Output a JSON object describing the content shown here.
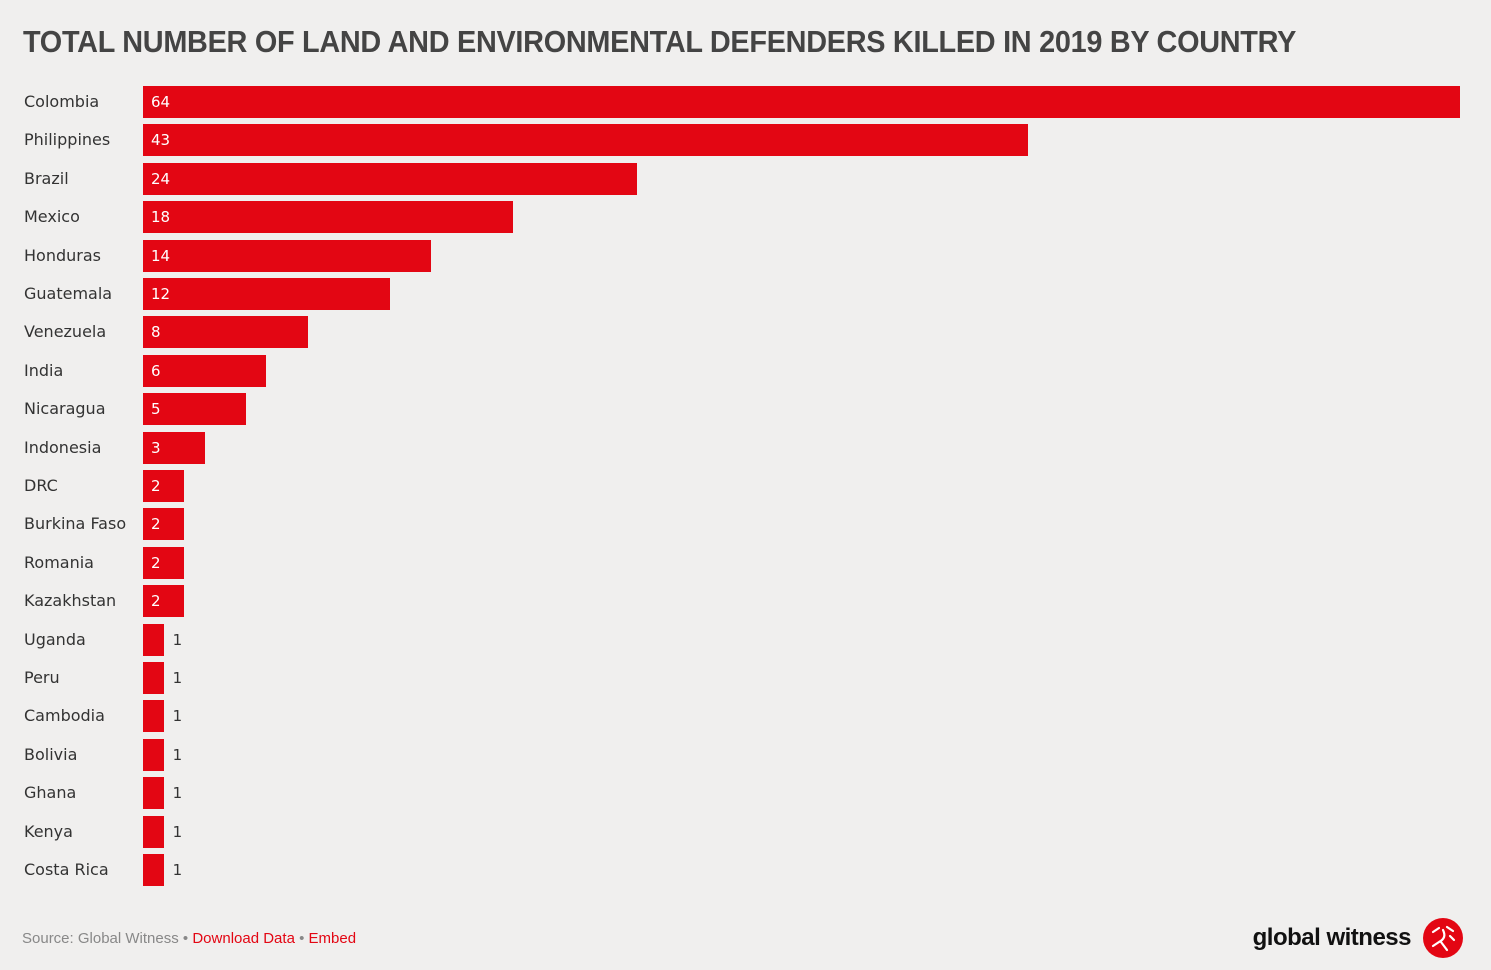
{
  "chart_data": {
    "type": "bar",
    "orientation": "horizontal",
    "title": "TOTAL NUMBER OF LAND AND ENVIRONMENTAL DEFENDERS KILLED IN 2019 BY COUNTRY",
    "categories": [
      "Colombia",
      "Philippines",
      "Brazil",
      "Mexico",
      "Honduras",
      "Guatemala",
      "Venezuela",
      "India",
      "Nicaragua",
      "Indonesia",
      "DRC",
      "Burkina Faso",
      "Romania",
      "Kazakhstan",
      "Uganda",
      "Peru",
      "Cambodia",
      "Bolivia",
      "Ghana",
      "Kenya",
      "Costa Rica"
    ],
    "values": [
      64,
      43,
      24,
      18,
      14,
      12,
      8,
      6,
      5,
      3,
      2,
      2,
      2,
      2,
      1,
      1,
      1,
      1,
      1,
      1,
      1
    ],
    "xlim": [
      0,
      64
    ],
    "grid": false,
    "data_labels": true,
    "bar_color": "#e30613"
  },
  "footer": {
    "source": "Source: Global Witness",
    "separator": "•",
    "download": "Download Data",
    "embed": "Embed"
  },
  "logo": {
    "text": "global witness"
  }
}
